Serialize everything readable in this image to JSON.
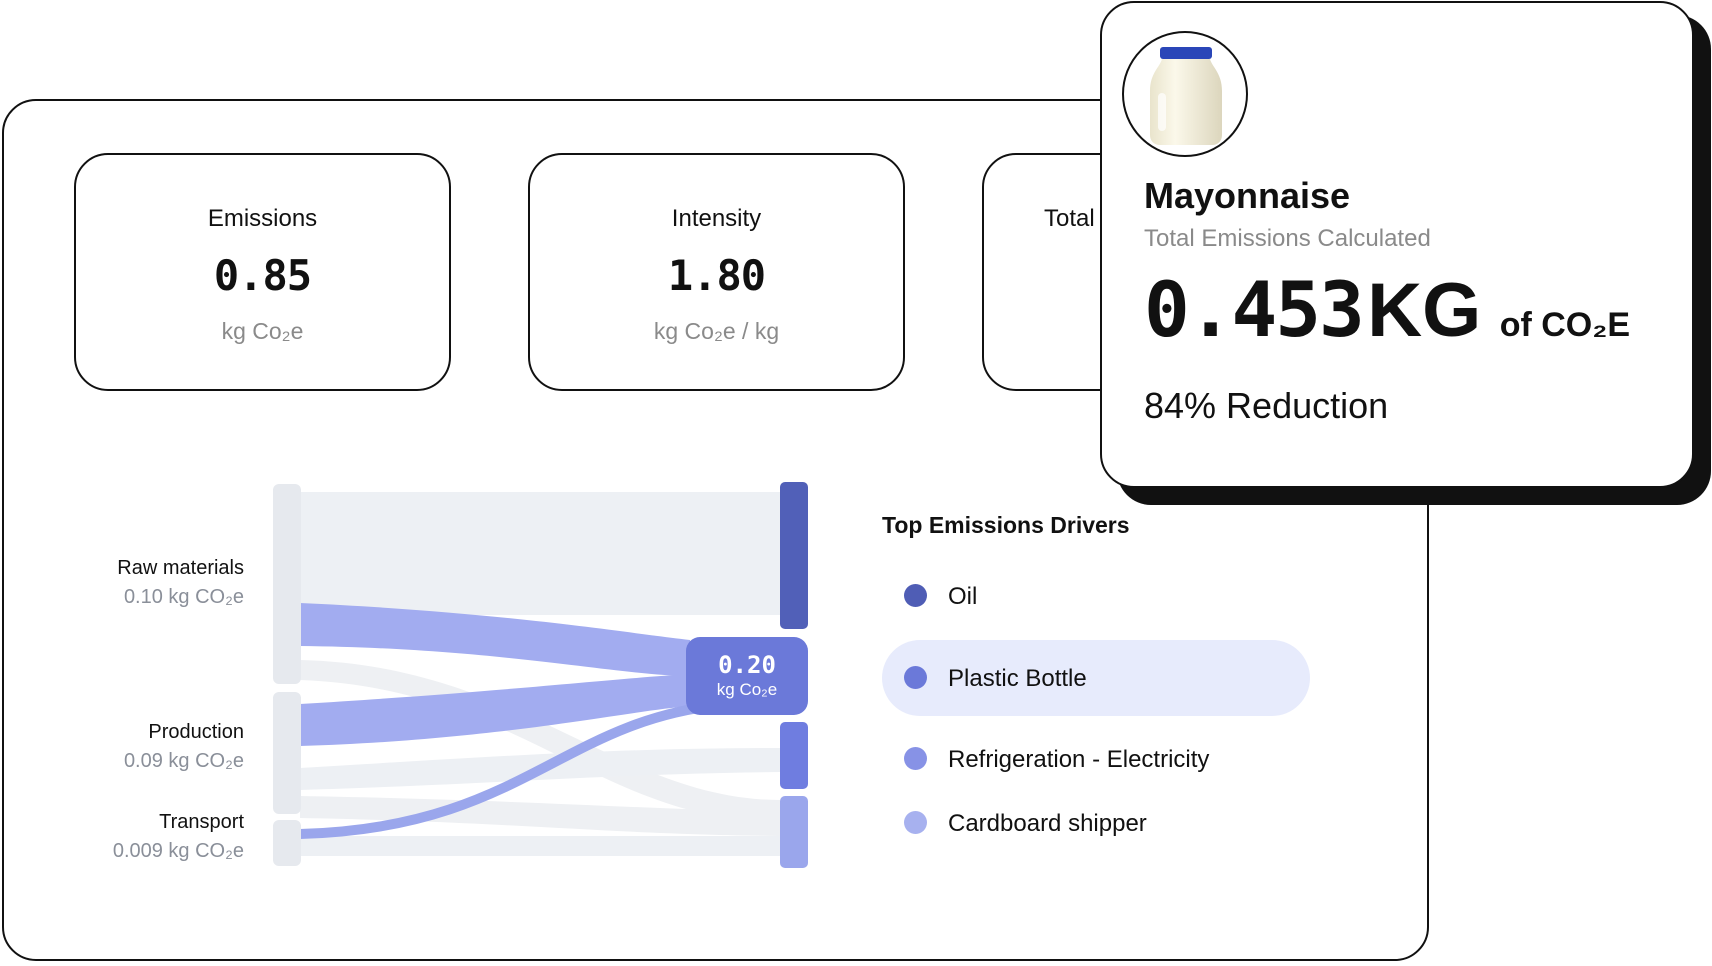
{
  "metrics": [
    {
      "label": "Emissions",
      "value": "0.85",
      "unit": "kg Co₂e"
    },
    {
      "label": "Intensity",
      "value": "1.80",
      "unit": "kg Co₂e / kg"
    },
    {
      "label": "Total"
    }
  ],
  "sankey": {
    "sources": [
      {
        "name": "Raw materials",
        "amount": "0.10 kg CO₂e"
      },
      {
        "name": "Production",
        "amount": "0.09 kg CO₂e"
      },
      {
        "name": "Transport",
        "amount": "0.009 kg CO₂e"
      }
    ],
    "tooltip": {
      "value": "0.20",
      "unit": "kg Co₂e"
    },
    "colors": {
      "base": "#eceef2",
      "node_dark": "#5160b8",
      "node_mid": "#6b79d9",
      "node_light": "#9aa6ec",
      "flow": "#a6b0f0",
      "source_node": "#e6e9ee"
    }
  },
  "drivers": {
    "title": "Top Emissions Drivers",
    "items": [
      {
        "label": "Oil",
        "color": "#4f5db5",
        "active": false
      },
      {
        "label": "Plastic Bottle",
        "color": "#6b79d9",
        "active": true
      },
      {
        "label": "Refrigeration - Electricity",
        "color": "#8792e6",
        "active": false
      },
      {
        "label": "Cardboard shipper",
        "color": "#a7b1ef",
        "active": false
      }
    ]
  },
  "product": {
    "name": "Mayonnaise",
    "subtitle": "Total Emissions Calculated",
    "value": "0.453",
    "unit": "KG",
    "unit_suffix": "of CO₂E",
    "reduction": "84% Reduction",
    "image_icon": "mayonnaise-jar"
  }
}
